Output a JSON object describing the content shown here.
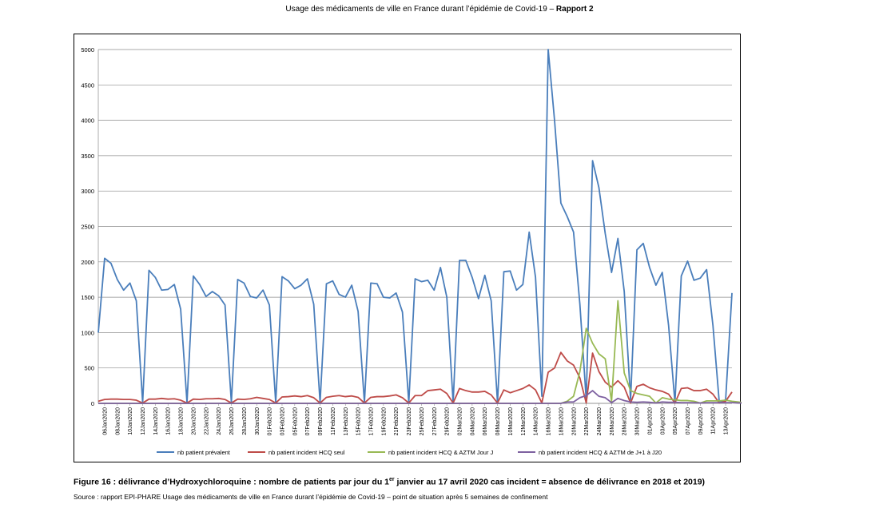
{
  "header": {
    "text_main": "Usage des médicaments de ville en France durant l’épidémie de Covid-19 – ",
    "text_bold": "Rapport 2"
  },
  "caption": {
    "part1": "Figure 16 : délivrance d’Hydroxychloroquine : nombre de patients par jour du 1",
    "sup": "er",
    "part2": " janvier au 17 avril 2020 cas incident = absence de délivrance en 2018 et 2019)"
  },
  "source": "Source : rapport EPI-PHARE Usage des médicaments de ville en France durant l’épidémie de Covid-19 – point de situation après 5 semaines de confinement",
  "chart_data": {
    "type": "line",
    "title": "",
    "xlabel": "",
    "ylabel": "",
    "ylim": [
      0,
      5000
    ],
    "yticks": [
      0,
      500,
      1000,
      1500,
      2000,
      2500,
      3000,
      3500,
      4000,
      4500,
      5000
    ],
    "grid": true,
    "legend_position": "bottom",
    "start_date": "2020-01-05",
    "x_tick_labels": [
      "06Jan2020",
      "08Jan2020",
      "10Jan2020",
      "12Jan2020",
      "14Jan2020",
      "16Jan2020",
      "18Jan2020",
      "20Jan2020",
      "22Jan2020",
      "24Jan2020",
      "26Jan2020",
      "28Jan2020",
      "30Jan2020",
      "01Feb2020",
      "03Feb2020",
      "05Feb2020",
      "07Feb2020",
      "09Feb2020",
      "11Feb2020",
      "13Feb2020",
      "15Feb2020",
      "17Feb2020",
      "19Feb2020",
      "21Feb2020",
      "23Feb2020",
      "25Feb2020",
      "27Feb2020",
      "29Feb2020",
      "02Mar2020",
      "04Mar2020",
      "06Mar2020",
      "08Mar2020",
      "10Mar2020",
      "12Mar2020",
      "14Mar2020",
      "16Mar2020",
      "18Mar2020",
      "20Mar2020",
      "22Mar2020",
      "24Mar2020",
      "26Mar2020",
      "28Mar2020",
      "30Mar2020",
      "01Apr2020",
      "03Apr2020",
      "05Apr2020",
      "07Apr2020",
      "09Apr2020",
      "11Apr2020",
      "13Apr2020"
    ],
    "series": [
      {
        "name": "nb patient prévalent",
        "color": "#4a7ebb",
        "values": [
          1000,
          2050,
          1980,
          1750,
          1600,
          1700,
          1450,
          10,
          1880,
          1780,
          1600,
          1610,
          1680,
          1330,
          10,
          1800,
          1680,
          1510,
          1580,
          1520,
          1390,
          10,
          1750,
          1700,
          1510,
          1490,
          1600,
          1390,
          10,
          1790,
          1730,
          1620,
          1670,
          1760,
          1400,
          10,
          1690,
          1730,
          1540,
          1500,
          1670,
          1300,
          10,
          1700,
          1690,
          1500,
          1490,
          1560,
          1290,
          10,
          1760,
          1720,
          1740,
          1600,
          1920,
          1500,
          10,
          2020,
          2020,
          1780,
          1480,
          1810,
          1450,
          10,
          1860,
          1870,
          1600,
          1680,
          2420,
          1780,
          100,
          5000,
          4000,
          2830,
          2640,
          2420,
          1400,
          50,
          3430,
          3050,
          2400,
          1850,
          2330,
          1580,
          50,
          2170,
          2260,
          1920,
          1670,
          1850,
          1100,
          10,
          1800,
          2010,
          1740,
          1770,
          1890,
          1100,
          10,
          50,
          1560
        ]
      },
      {
        "name": "nb patient incident HCQ seul",
        "color": "#be4b48",
        "values": [
          30,
          55,
          60,
          60,
          55,
          55,
          45,
          5,
          60,
          60,
          70,
          60,
          65,
          45,
          5,
          60,
          55,
          65,
          65,
          70,
          55,
          5,
          60,
          55,
          65,
          85,
          70,
          55,
          5,
          90,
          95,
          105,
          95,
          110,
          80,
          5,
          85,
          100,
          110,
          95,
          105,
          85,
          5,
          85,
          95,
          95,
          105,
          120,
          80,
          5,
          110,
          110,
          180,
          190,
          200,
          140,
          5,
          210,
          180,
          160,
          160,
          170,
          120,
          5,
          190,
          150,
          180,
          210,
          260,
          190,
          5,
          440,
          500,
          720,
          600,
          540,
          360,
          5,
          710,
          450,
          300,
          230,
          320,
          230,
          5,
          240,
          270,
          220,
          190,
          170,
          130,
          5,
          210,
          220,
          180,
          180,
          200,
          130,
          5,
          30,
          160
        ]
      },
      {
        "name": "nb patient incident HCQ & AZTM Jour J",
        "color": "#98b954",
        "values": [
          0,
          0,
          0,
          0,
          0,
          0,
          0,
          0,
          0,
          0,
          0,
          0,
          0,
          0,
          0,
          0,
          0,
          0,
          0,
          0,
          0,
          0,
          0,
          0,
          0,
          0,
          0,
          0,
          0,
          0,
          0,
          0,
          0,
          0,
          0,
          0,
          0,
          0,
          0,
          0,
          0,
          0,
          0,
          0,
          0,
          0,
          0,
          0,
          0,
          0,
          0,
          0,
          0,
          0,
          0,
          0,
          0,
          0,
          0,
          0,
          0,
          0,
          0,
          0,
          0,
          0,
          0,
          0,
          0,
          0,
          0,
          0,
          0,
          0,
          30,
          100,
          450,
          1060,
          850,
          700,
          630,
          30,
          1450,
          430,
          180,
          140,
          120,
          100,
          5,
          80,
          60,
          50,
          40,
          40,
          30,
          5,
          35,
          35,
          35,
          45,
          30,
          20,
          5,
          5,
          15
        ]
      },
      {
        "name": "nb patient incident HCQ & AZTM de J+1 à J20",
        "color": "#7d60a0",
        "values": [
          0,
          0,
          0,
          0,
          0,
          0,
          0,
          0,
          0,
          0,
          0,
          0,
          0,
          0,
          0,
          0,
          0,
          0,
          0,
          0,
          0,
          0,
          0,
          0,
          0,
          0,
          0,
          0,
          0,
          0,
          0,
          0,
          0,
          0,
          0,
          0,
          0,
          0,
          0,
          0,
          0,
          0,
          0,
          0,
          0,
          0,
          0,
          0,
          0,
          0,
          0,
          0,
          0,
          0,
          0,
          0,
          0,
          0,
          0,
          0,
          0,
          0,
          0,
          0,
          0,
          0,
          0,
          0,
          0,
          0,
          0,
          0,
          0,
          0,
          20,
          20,
          80,
          110,
          180,
          100,
          80,
          10,
          70,
          40,
          20,
          15,
          20,
          15,
          5,
          20,
          15,
          15,
          10,
          10,
          10,
          5,
          10,
          10,
          10,
          10,
          10,
          5,
          5,
          5,
          10
        ]
      }
    ]
  }
}
